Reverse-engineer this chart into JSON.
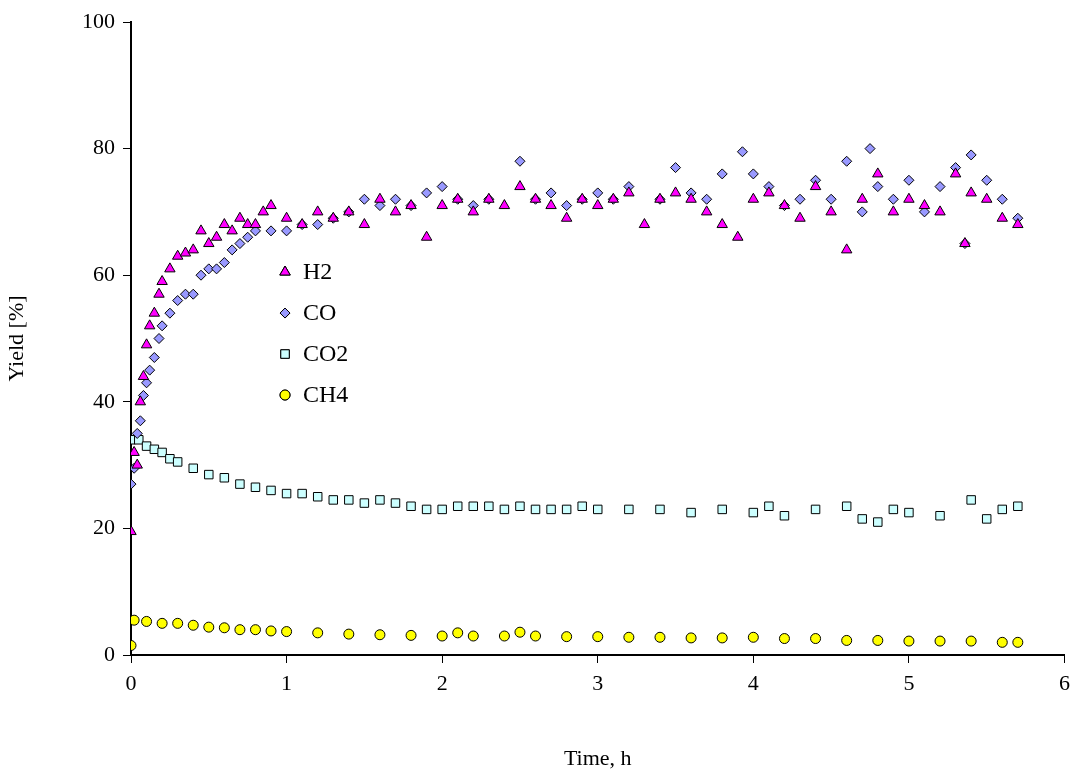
{
  "chart_data": {
    "type": "scatter",
    "xlabel": "Time, h",
    "ylabel": "Yield [%]",
    "xlim": [
      0,
      6
    ],
    "xticks": [
      0,
      1,
      2,
      3,
      4,
      5,
      6
    ],
    "ylim": [
      0,
      100
    ],
    "yticks": [
      0,
      20,
      40,
      60,
      80,
      100
    ],
    "grid": false,
    "legend": "left",
    "series": [
      {
        "name": "H2",
        "color": "#ff00ff",
        "marker": "triangle",
        "x": [
          0,
          0.02,
          0.04,
          0.06,
          0.08,
          0.1,
          0.12,
          0.15,
          0.18,
          0.2,
          0.25,
          0.3,
          0.35,
          0.4,
          0.45,
          0.5,
          0.55,
          0.6,
          0.65,
          0.7,
          0.75,
          0.8,
          0.85,
          0.9,
          1.0,
          1.1,
          1.2,
          1.3,
          1.4,
          1.5,
          1.6,
          1.7,
          1.8,
          1.9,
          2.0,
          2.1,
          2.2,
          2.3,
          2.4,
          2.5,
          2.6,
          2.7,
          2.8,
          2.9,
          3.0,
          3.1,
          3.2,
          3.3,
          3.4,
          3.5,
          3.6,
          3.7,
          3.8,
          3.9,
          4.0,
          4.1,
          4.2,
          4.3,
          4.4,
          4.5,
          4.6,
          4.7,
          4.8,
          4.9,
          5.0,
          5.1,
          5.2,
          5.3,
          5.36,
          5.4,
          5.5,
          5.6,
          5.7
        ],
        "values": [
          19.5,
          32,
          30,
          40,
          44,
          49,
          52,
          54,
          57,
          59,
          61,
          63,
          63.5,
          64,
          67,
          65,
          66,
          68,
          67,
          69,
          68,
          68,
          70,
          71,
          69,
          68,
          70,
          69,
          70,
          68,
          72,
          70,
          71,
          66,
          71,
          72,
          70,
          72,
          71,
          74,
          72,
          71,
          69,
          72,
          71,
          72,
          73,
          68,
          72,
          73,
          72,
          70,
          68,
          66,
          72,
          73,
          71,
          69,
          74,
          70,
          64,
          72,
          76,
          70,
          72,
          71,
          70,
          76,
          65,
          73,
          72,
          69,
          68
        ]
      },
      {
        "name": "CO",
        "color": "#9999ff",
        "marker": "diamond",
        "x": [
          0,
          0.02,
          0.04,
          0.06,
          0.08,
          0.1,
          0.12,
          0.15,
          0.18,
          0.2,
          0.25,
          0.3,
          0.35,
          0.4,
          0.45,
          0.5,
          0.55,
          0.6,
          0.65,
          0.7,
          0.75,
          0.8,
          0.9,
          1.0,
          1.1,
          1.2,
          1.3,
          1.4,
          1.5,
          1.6,
          1.7,
          1.8,
          1.9,
          2.0,
          2.1,
          2.2,
          2.3,
          2.5,
          2.6,
          2.7,
          2.8,
          2.9,
          3.0,
          3.1,
          3.2,
          3.4,
          3.5,
          3.6,
          3.7,
          3.8,
          3.93,
          4.0,
          4.1,
          4.2,
          4.3,
          4.4,
          4.5,
          4.6,
          4.7,
          4.75,
          4.8,
          4.9,
          5.0,
          5.1,
          5.2,
          5.3,
          5.36,
          5.4,
          5.5,
          5.6,
          5.7
        ],
        "values": [
          27,
          29.5,
          35,
          37,
          41,
          43,
          45,
          47,
          50,
          52,
          54,
          56,
          57,
          57,
          60,
          61,
          61,
          62,
          64,
          65,
          66,
          67,
          67,
          67,
          68,
          68,
          69,
          70,
          72,
          71,
          72,
          71,
          73,
          74,
          72,
          71,
          72,
          78,
          72,
          73,
          71,
          72,
          73,
          72,
          74,
          72,
          77,
          73,
          72,
          76,
          79.5,
          76,
          74,
          71,
          72,
          75,
          72,
          78,
          70,
          80,
          74,
          72,
          75,
          70,
          74,
          77,
          65,
          79,
          75,
          72,
          69
        ]
      },
      {
        "name": "CO2",
        "color": "#ccffff",
        "marker": "square",
        "x": [
          0,
          0.05,
          0.1,
          0.15,
          0.2,
          0.25,
          0.3,
          0.4,
          0.5,
          0.6,
          0.7,
          0.8,
          0.9,
          1.0,
          1.1,
          1.2,
          1.3,
          1.4,
          1.5,
          1.6,
          1.7,
          1.8,
          1.9,
          2.0,
          2.1,
          2.2,
          2.3,
          2.4,
          2.5,
          2.6,
          2.7,
          2.8,
          2.9,
          3.0,
          3.2,
          3.4,
          3.6,
          3.8,
          4.0,
          4.1,
          4.2,
          4.4,
          4.6,
          4.7,
          4.8,
          4.9,
          5.0,
          5.2,
          5.4,
          5.5,
          5.6,
          5.7
        ],
        "values": [
          34,
          34,
          33,
          32.5,
          32,
          31,
          30.5,
          29.5,
          28.5,
          28,
          27,
          26.5,
          26,
          25.5,
          25.5,
          25,
          24.5,
          24.5,
          24,
          24.5,
          24,
          23.5,
          23,
          23,
          23.5,
          23.5,
          23.5,
          23,
          23.5,
          23,
          23,
          23,
          23.5,
          23,
          23,
          23,
          22.5,
          23,
          22.5,
          23.5,
          22,
          23,
          23.5,
          21.5,
          21,
          23,
          22.5,
          22,
          24.5,
          21.5,
          23,
          23.5
        ]
      },
      {
        "name": "CH4",
        "color": "#ffff00",
        "marker": "circle",
        "x": [
          0,
          0.02,
          0.1,
          0.2,
          0.3,
          0.4,
          0.5,
          0.6,
          0.7,
          0.8,
          0.9,
          1.0,
          1.2,
          1.4,
          1.6,
          1.8,
          2.0,
          2.1,
          2.2,
          2.4,
          2.5,
          2.6,
          2.8,
          3.0,
          3.2,
          3.4,
          3.6,
          3.8,
          4.0,
          4.2,
          4.4,
          4.6,
          4.8,
          5.0,
          5.2,
          5.4,
          5.6,
          5.7
        ],
        "values": [
          1.5,
          5.5,
          5.3,
          5,
          5,
          4.7,
          4.4,
          4.3,
          4,
          4,
          3.8,
          3.7,
          3.5,
          3.3,
          3.2,
          3.1,
          3,
          3.5,
          3,
          3,
          3.6,
          3,
          2.9,
          2.9,
          2.8,
          2.8,
          2.7,
          2.7,
          2.8,
          2.6,
          2.6,
          2.3,
          2.3,
          2.2,
          2.2,
          2.2,
          2,
          2
        ]
      }
    ]
  }
}
